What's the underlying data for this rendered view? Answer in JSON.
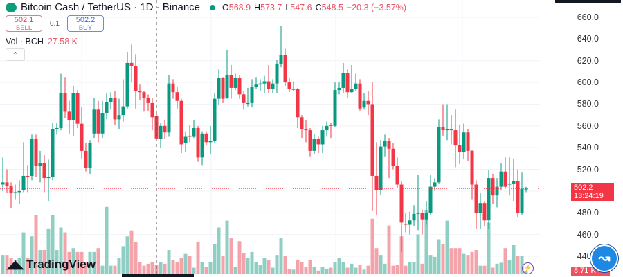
{
  "header": {
    "symbol": "Bitcoin Cash / TetherUS · 1D · Binance",
    "o_label": "O",
    "o": "568.9",
    "h_label": "H",
    "h": "573.7",
    "l_label": "L",
    "l": "547.6",
    "c_label": "C",
    "c": "548.5",
    "change": "−20.3 (−3.57%)"
  },
  "trade": {
    "sell_price": "502.1",
    "sell_label": "SELL",
    "spread": "0.1",
    "buy_price": "502.2",
    "buy_label": "BUY"
  },
  "volume_legend": {
    "label": "Vol · BCH",
    "value": "27.58 K"
  },
  "collapse_icon": "chevron-up-icon",
  "price_axis": [
    "660.0",
    "640.0",
    "620.0",
    "600.0",
    "580.0",
    "560.0",
    "540.0",
    "520.0",
    "480.0",
    "460.0",
    "440.0"
  ],
  "last_price_tag": {
    "price": "502.2",
    "countdown": "13:24:19"
  },
  "last_volume_tag": "8.71 K",
  "brand": "TradingView",
  "colors": {
    "up": "#089981",
    "down": "#f23645",
    "up_volume": "#8fcfc3",
    "down_volume": "#f5a3aa"
  },
  "chart_data": {
    "type": "candlestick",
    "interval": "1D",
    "ylim": [
      440,
      660
    ],
    "grid": true,
    "crosshair_index": 37,
    "last_price": 502.2,
    "ohlc": [
      [
        506,
        531,
        500,
        508
      ],
      [
        508,
        520,
        498,
        505
      ],
      [
        505,
        508,
        484,
        498
      ],
      [
        498,
        506,
        492,
        499
      ],
      [
        499,
        510,
        488,
        500
      ],
      [
        501,
        545,
        499,
        514
      ],
      [
        514,
        524,
        499,
        513
      ],
      [
        514,
        552,
        510,
        548
      ],
      [
        548,
        552,
        513,
        523
      ],
      [
        523,
        537,
        508,
        526
      ],
      [
        526,
        533,
        499,
        512
      ],
      [
        512,
        529,
        491,
        513
      ],
      [
        513,
        563,
        510,
        557
      ],
      [
        557,
        563,
        552,
        558
      ],
      [
        558,
        608,
        556,
        590
      ],
      [
        590,
        605,
        567,
        573
      ],
      [
        573,
        583,
        553,
        565
      ],
      [
        565,
        597,
        551,
        590
      ],
      [
        590,
        593,
        558,
        562
      ],
      [
        562,
        577,
        530,
        537
      ],
      [
        537,
        544,
        518,
        521
      ],
      [
        521,
        547,
        516,
        544
      ],
      [
        553,
        586,
        549,
        575
      ],
      [
        575,
        583,
        545,
        553
      ],
      [
        553,
        583,
        549,
        572
      ],
      [
        572,
        590,
        566,
        582
      ],
      [
        582,
        591,
        575,
        586
      ],
      [
        586,
        592,
        561,
        566
      ],
      [
        566,
        585,
        557,
        570
      ],
      [
        570,
        603,
        564,
        578
      ],
      [
        578,
        628,
        576,
        618
      ],
      [
        618,
        635,
        600,
        615
      ],
      [
        615,
        626,
        576,
        592
      ],
      [
        592,
        598,
        584,
        591
      ],
      [
        591,
        592,
        573,
        586
      ],
      [
        586,
        589,
        574,
        581
      ],
      [
        581,
        586,
        556,
        568
      ],
      [
        568.9,
        573.7,
        547.6,
        548.5
      ],
      [
        548,
        563,
        540,
        560
      ],
      [
        560,
        565,
        548,
        554
      ],
      [
        554,
        607,
        550,
        599
      ],
      [
        599,
        603,
        585,
        591
      ],
      [
        591,
        596,
        576,
        583
      ],
      [
        583,
        585,
        535,
        543
      ],
      [
        544,
        555,
        536,
        550
      ],
      [
        551,
        561,
        545,
        550
      ],
      [
        550,
        565,
        549,
        558
      ],
      [
        558,
        560,
        527,
        531
      ],
      [
        531,
        555,
        524,
        553
      ],
      [
        553,
        555,
        542,
        545
      ],
      [
        545,
        560,
        534,
        546
      ],
      [
        546,
        590,
        544,
        585
      ],
      [
        585,
        612,
        579,
        604
      ],
      [
        604,
        605,
        581,
        585
      ],
      [
        586,
        630,
        585,
        607
      ],
      [
        607,
        616,
        585,
        595
      ],
      [
        595,
        608,
        593,
        604
      ],
      [
        604,
        607,
        585,
        589
      ],
      [
        589,
        592,
        575,
        581
      ],
      [
        581,
        595,
        578,
        581
      ],
      [
        581,
        603,
        577,
        596
      ],
      [
        596,
        605,
        594,
        598
      ],
      [
        598,
        603,
        592,
        599
      ],
      [
        599,
        606,
        590,
        601
      ],
      [
        601,
        616,
        590,
        594
      ],
      [
        594,
        603,
        590,
        599
      ],
      [
        599,
        621,
        590,
        617
      ],
      [
        617,
        652,
        614,
        625
      ],
      [
        625,
        631,
        597,
        600
      ],
      [
        600,
        604,
        591,
        594
      ],
      [
        594,
        601,
        592,
        594
      ],
      [
        594,
        595,
        558,
        568
      ],
      [
        568,
        570,
        549,
        557
      ],
      [
        557,
        565,
        545,
        556
      ],
      [
        556,
        558,
        532,
        537
      ],
      [
        537,
        553,
        534,
        548
      ],
      [
        548,
        550,
        535,
        543
      ],
      [
        543,
        560,
        535,
        556
      ],
      [
        556,
        564,
        550,
        560
      ],
      [
        561,
        563,
        549,
        560
      ],
      [
        560,
        600,
        559,
        593
      ],
      [
        593,
        600,
        589,
        595
      ],
      [
        595,
        618,
        590,
        609
      ],
      [
        609,
        612,
        586,
        591
      ],
      [
        591,
        616,
        590,
        594
      ],
      [
        594,
        608,
        592,
        599
      ],
      [
        599,
        603,
        574,
        576
      ],
      [
        577,
        590,
        575,
        583
      ],
      [
        583,
        592,
        570,
        580
      ],
      [
        580,
        600,
        482,
        514
      ],
      [
        514,
        545,
        478,
        501
      ],
      [
        501,
        547,
        496,
        541
      ],
      [
        541,
        552,
        532,
        546
      ],
      [
        546,
        549,
        512,
        539
      ],
      [
        539,
        544,
        520,
        523
      ],
      [
        523,
        531,
        503,
        506
      ],
      [
        506,
        509,
        444,
        471
      ],
      [
        470,
        480,
        462,
        469
      ],
      [
        469,
        481,
        460,
        473
      ],
      [
        473,
        487,
        468,
        479
      ],
      [
        479,
        515,
        464,
        480
      ],
      [
        480,
        483,
        460,
        474
      ],
      [
        474,
        491,
        469,
        480
      ],
      [
        480,
        515,
        478,
        504
      ],
      [
        504,
        512,
        500,
        508
      ],
      [
        508,
        566,
        507,
        559
      ],
      [
        559,
        580,
        551,
        556
      ],
      [
        556,
        580,
        547,
        557
      ],
      [
        557,
        570,
        543,
        556
      ],
      [
        556,
        575,
        522,
        542
      ],
      [
        542,
        561,
        525,
        536
      ],
      [
        536,
        562,
        530,
        554
      ],
      [
        554,
        557,
        528,
        537
      ],
      [
        537,
        538,
        492,
        506
      ],
      [
        506,
        510,
        465,
        480
      ],
      [
        480,
        498,
        465,
        489
      ],
      [
        489,
        491,
        468,
        473
      ],
      [
        473,
        519,
        465,
        512
      ],
      [
        512,
        516,
        488,
        496
      ],
      [
        496,
        512,
        485,
        504
      ],
      [
        504,
        526,
        501,
        518
      ],
      [
        518,
        531,
        502,
        504
      ],
      [
        506,
        531,
        496,
        507
      ],
      [
        507,
        530,
        491,
        509
      ],
      [
        509,
        520,
        476,
        480
      ],
      [
        480,
        517,
        478,
        502
      ],
      [
        502.1,
        504,
        499,
        502.2
      ]
    ],
    "volume_unit": "K",
    "volume": [
      57,
      57,
      48,
      24,
      48,
      126,
      48,
      114,
      180,
      72,
      72,
      138,
      180,
      72,
      141,
      126,
      66,
      78,
      66,
      66,
      36,
      66,
      66,
      78,
      24,
      204,
      24,
      24,
      48,
      84,
      114,
      132,
      96,
      36,
      24,
      30,
      36,
      27.58,
      36,
      30,
      72,
      42,
      36,
      48,
      60,
      54,
      18,
      96,
      36,
      21,
      36,
      90,
      141,
      54,
      162,
      108,
      21,
      99,
      63,
      48,
      66,
      36,
      27,
      48,
      42,
      18,
      57,
      108,
      54,
      15,
      12,
      42,
      36,
      21,
      42,
      21,
      9,
      21,
      15,
      18,
      36,
      48,
      36,
      18,
      30,
      18,
      27,
      12,
      24,
      168,
      78,
      57,
      30,
      147,
      24,
      27,
      114,
      24,
      36,
      36,
      120,
      30,
      195,
      57,
      51,
      105,
      90,
      162,
      78,
      78,
      78,
      60,
      57,
      66,
      72,
      24,
      24,
      156,
      18,
      30,
      33,
      78,
      42,
      87,
      54,
      54,
      8.71
    ]
  }
}
